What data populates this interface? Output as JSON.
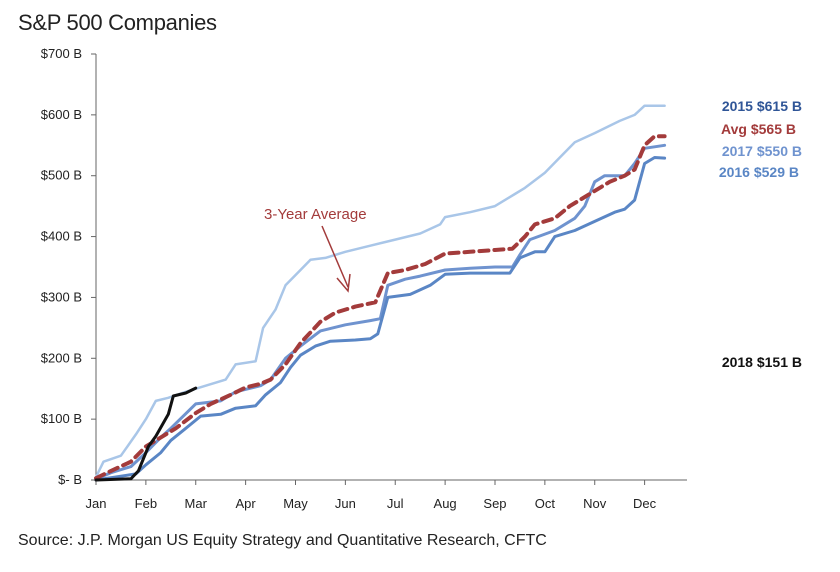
{
  "chart_data": {
    "type": "line",
    "title": "S&P 500 Companies",
    "source": "Source: J.P. Morgan US Equity Strategy and Quantitative Research, CFTC",
    "x_categories": [
      "Jan",
      "Feb",
      "Mar",
      "Apr",
      "May",
      "Jun",
      "Jul",
      "Aug",
      "Sep",
      "Oct",
      "Nov",
      "Dec"
    ],
    "x_range": [
      0,
      11.85
    ],
    "y_ticks": [
      {
        "value": 0,
        "label": "$- B"
      },
      {
        "value": 100,
        "label": "$100 B"
      },
      {
        "value": 200,
        "label": "$200 B"
      },
      {
        "value": 300,
        "label": "$300 B"
      },
      {
        "value": 400,
        "label": "$400 B"
      },
      {
        "value": 500,
        "label": "$500 B"
      },
      {
        "value": 600,
        "label": "$600 B"
      },
      {
        "value": 700,
        "label": "$700 B"
      }
    ],
    "ylim": [
      0,
      700
    ],
    "series": [
      {
        "name": "2015",
        "label": "2015 $615 B",
        "color": "#a9c6e8",
        "dashed": false,
        "width": 2.5,
        "points": [
          [
            0,
            5
          ],
          [
            0.15,
            30
          ],
          [
            0.5,
            40
          ],
          [
            0.8,
            75
          ],
          [
            1.0,
            100
          ],
          [
            1.2,
            130
          ],
          [
            1.45,
            135
          ],
          [
            1.8,
            145
          ],
          [
            2.2,
            155
          ],
          [
            2.6,
            165
          ],
          [
            2.8,
            190
          ],
          [
            3.2,
            195
          ],
          [
            3.35,
            250
          ],
          [
            3.6,
            280
          ],
          [
            3.8,
            320
          ],
          [
            4.1,
            345
          ],
          [
            4.3,
            362
          ],
          [
            4.6,
            365
          ],
          [
            5.0,
            375
          ],
          [
            5.5,
            385
          ],
          [
            6.0,
            395
          ],
          [
            6.5,
            405
          ],
          [
            6.9,
            420
          ],
          [
            7.0,
            432
          ],
          [
            7.5,
            440
          ],
          [
            8.0,
            450
          ],
          [
            8.4,
            470
          ],
          [
            8.6,
            480
          ],
          [
            9.0,
            505
          ],
          [
            9.3,
            530
          ],
          [
            9.6,
            555
          ],
          [
            10.0,
            570
          ],
          [
            10.5,
            590
          ],
          [
            10.8,
            600
          ],
          [
            11.0,
            615
          ],
          [
            11.4,
            615
          ]
        ]
      },
      {
        "name": "2017",
        "label": "2017 $550 B",
        "color": "#6f93cf",
        "dashed": false,
        "width": 3,
        "points": [
          [
            0,
            2
          ],
          [
            0.3,
            12
          ],
          [
            0.7,
            22
          ],
          [
            1.0,
            45
          ],
          [
            1.3,
            70
          ],
          [
            1.5,
            85
          ],
          [
            2.0,
            125
          ],
          [
            2.5,
            130
          ],
          [
            2.8,
            145
          ],
          [
            3.3,
            155
          ],
          [
            3.5,
            165
          ],
          [
            3.8,
            200
          ],
          [
            4.1,
            220
          ],
          [
            4.5,
            245
          ],
          [
            5.0,
            255
          ],
          [
            5.5,
            262
          ],
          [
            5.7,
            265
          ],
          [
            5.85,
            320
          ],
          [
            6.2,
            330
          ],
          [
            6.5,
            335
          ],
          [
            7.0,
            345
          ],
          [
            7.5,
            348
          ],
          [
            8.0,
            350
          ],
          [
            8.35,
            350
          ],
          [
            8.5,
            370
          ],
          [
            8.7,
            395
          ],
          [
            9.2,
            410
          ],
          [
            9.6,
            430
          ],
          [
            9.8,
            450
          ],
          [
            10.0,
            490
          ],
          [
            10.2,
            500
          ],
          [
            10.6,
            500
          ],
          [
            10.8,
            520
          ],
          [
            11.0,
            545
          ],
          [
            11.4,
            550
          ]
        ]
      },
      {
        "name": "2016",
        "label": "2016 $529 B",
        "color": "#5a86c5",
        "dashed": false,
        "width": 3,
        "points": [
          [
            0,
            0
          ],
          [
            0.4,
            5
          ],
          [
            0.8,
            10
          ],
          [
            1.0,
            25
          ],
          [
            1.3,
            45
          ],
          [
            1.5,
            65
          ],
          [
            1.8,
            85
          ],
          [
            2.1,
            105
          ],
          [
            2.5,
            108
          ],
          [
            2.8,
            118
          ],
          [
            3.2,
            122
          ],
          [
            3.4,
            140
          ],
          [
            3.7,
            160
          ],
          [
            3.9,
            185
          ],
          [
            4.1,
            205
          ],
          [
            4.4,
            220
          ],
          [
            4.7,
            228
          ],
          [
            5.2,
            230
          ],
          [
            5.5,
            232
          ],
          [
            5.65,
            240
          ],
          [
            5.85,
            300
          ],
          [
            6.3,
            305
          ],
          [
            6.7,
            320
          ],
          [
            7.0,
            338
          ],
          [
            7.5,
            340
          ],
          [
            8.0,
            340
          ],
          [
            8.3,
            340
          ],
          [
            8.5,
            365
          ],
          [
            8.8,
            375
          ],
          [
            9.0,
            375
          ],
          [
            9.2,
            400
          ],
          [
            9.6,
            410
          ],
          [
            10.0,
            425
          ],
          [
            10.4,
            440
          ],
          [
            10.6,
            445
          ],
          [
            10.8,
            460
          ],
          [
            11.0,
            520
          ],
          [
            11.2,
            530
          ],
          [
            11.4,
            529
          ]
        ]
      },
      {
        "name": "Avg",
        "label": "Avg $565 B",
        "color": "#a33b3b",
        "dashed": true,
        "width": 4,
        "points": [
          [
            0,
            3
          ],
          [
            0.3,
            15
          ],
          [
            0.7,
            30
          ],
          [
            1.0,
            55
          ],
          [
            1.3,
            70
          ],
          [
            1.6,
            85
          ],
          [
            2.0,
            110
          ],
          [
            2.3,
            125
          ],
          [
            2.7,
            140
          ],
          [
            3.0,
            152
          ],
          [
            3.3,
            158
          ],
          [
            3.5,
            165
          ],
          [
            3.8,
            190
          ],
          [
            4.1,
            225
          ],
          [
            4.5,
            260
          ],
          [
            4.8,
            275
          ],
          [
            5.2,
            285
          ],
          [
            5.6,
            292
          ],
          [
            5.85,
            340
          ],
          [
            6.2,
            345
          ],
          [
            6.6,
            355
          ],
          [
            7.0,
            372
          ],
          [
            7.5,
            375
          ],
          [
            8.0,
            378
          ],
          [
            8.35,
            380
          ],
          [
            8.6,
            400
          ],
          [
            8.8,
            420
          ],
          [
            9.2,
            430
          ],
          [
            9.5,
            450
          ],
          [
            9.9,
            470
          ],
          [
            10.3,
            490
          ],
          [
            10.6,
            500
          ],
          [
            10.8,
            510
          ],
          [
            11.0,
            550
          ],
          [
            11.2,
            565
          ],
          [
            11.4,
            565
          ]
        ]
      },
      {
        "name": "2018",
        "label": "2018 $151 B",
        "color": "#111111",
        "dashed": false,
        "width": 3,
        "points": [
          [
            0,
            0
          ],
          [
            0.7,
            2
          ],
          [
            0.85,
            15
          ],
          [
            1.05,
            55
          ],
          [
            1.2,
            72
          ],
          [
            1.45,
            108
          ],
          [
            1.55,
            138
          ],
          [
            1.8,
            143
          ],
          [
            2.0,
            151
          ]
        ]
      }
    ],
    "annotation": {
      "text": "3-Year Average"
    }
  }
}
